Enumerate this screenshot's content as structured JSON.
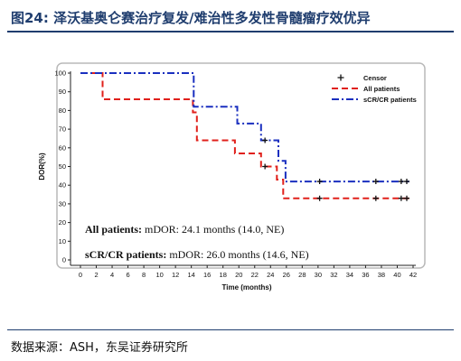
{
  "figure": {
    "label": "图24:",
    "title": "泽沃基奥仑赛治疗复发/难治性多发性骨髓瘤疗效优异",
    "source": "数据来源：ASH，东吴证券研究所"
  },
  "chart_data": {
    "type": "line",
    "step": true,
    "xlabel": "Time (months)",
    "ylabel": "DOR(%)",
    "xlim": [
      0,
      42
    ],
    "ylim": [
      0,
      100
    ],
    "xticks": [
      0,
      2,
      4,
      6,
      8,
      10,
      12,
      14,
      16,
      18,
      20,
      22,
      24,
      26,
      28,
      30,
      32,
      34,
      36,
      38,
      40,
      42
    ],
    "yticks": [
      0,
      10,
      20,
      30,
      40,
      50,
      60,
      70,
      80,
      90,
      100
    ],
    "grid": false,
    "legend": {
      "placement": "top-right",
      "censor_label": "Censor"
    },
    "series": [
      {
        "name": "All patients",
        "color": "#e0201b",
        "style": "dashed",
        "points": [
          [
            0,
            100
          ],
          [
            2.8,
            100
          ],
          [
            2.8,
            86
          ],
          [
            14.2,
            86
          ],
          [
            14.2,
            79
          ],
          [
            14.7,
            79
          ],
          [
            14.7,
            64
          ],
          [
            19.5,
            64
          ],
          [
            19.5,
            57
          ],
          [
            22.8,
            57
          ],
          [
            22.8,
            50
          ],
          [
            24.8,
            50
          ],
          [
            24.8,
            43
          ],
          [
            25.6,
            43
          ],
          [
            25.6,
            33
          ],
          [
            41.5,
            33
          ]
        ],
        "censors": [
          [
            23.3,
            50
          ],
          [
            30.2,
            33
          ],
          [
            37.3,
            33
          ],
          [
            40.5,
            33
          ],
          [
            41.2,
            33
          ]
        ]
      },
      {
        "name": "sCR/CR patients",
        "color": "#1a2fbf",
        "style": "dashdot",
        "points": [
          [
            0,
            100
          ],
          [
            14.3,
            100
          ],
          [
            14.3,
            82
          ],
          [
            19.8,
            82
          ],
          [
            19.8,
            73
          ],
          [
            22.8,
            73
          ],
          [
            22.8,
            64
          ],
          [
            25.0,
            64
          ],
          [
            25.0,
            53
          ],
          [
            25.9,
            53
          ],
          [
            25.9,
            42
          ],
          [
            41.5,
            42
          ]
        ],
        "censors": [
          [
            23.3,
            64
          ],
          [
            30.2,
            42
          ],
          [
            37.3,
            42
          ],
          [
            40.5,
            42
          ],
          [
            41.2,
            42
          ]
        ]
      }
    ],
    "annotations": [
      {
        "bold": "All patients:",
        "text": " mDOR: 24.1 months (14.0, NE)"
      },
      {
        "bold": "sCR/CR patients:",
        "text": " mDOR: 26.0 months (14.6, NE)"
      }
    ]
  }
}
